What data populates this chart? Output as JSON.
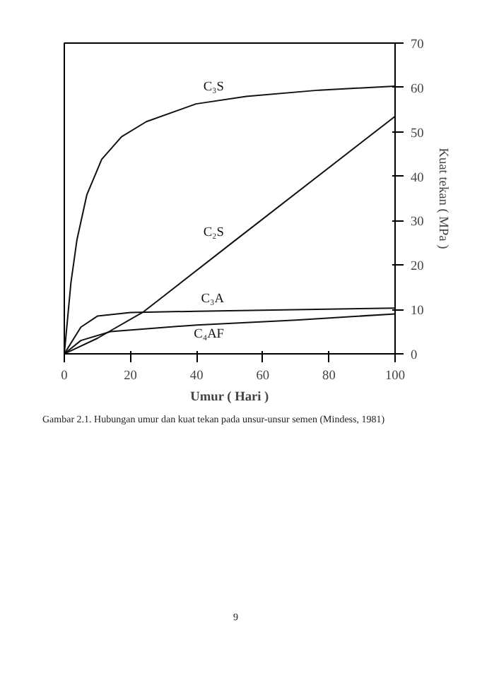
{
  "chart_data": {
    "type": "line",
    "xlabel": "Umur ( Hari )",
    "ylabel": "Kuat tekan ( MPa )",
    "xlim": [
      0,
      100
    ],
    "ylim": [
      0,
      70
    ],
    "xticks": [
      0,
      20,
      40,
      60,
      80,
      100
    ],
    "yticks": [
      0,
      10,
      20,
      30,
      40,
      50,
      60,
      70
    ],
    "grid": false,
    "marker": "none",
    "line_style": "solid",
    "series": [
      {
        "name": "C₃S",
        "color": "#111111",
        "x": [
          0,
          1,
          2,
          3.8,
          6.8,
          11.3,
          17.3,
          24.8,
          39.8,
          55,
          77,
          100
        ],
        "values": [
          0,
          8,
          16,
          25.6,
          35.8,
          43.8,
          48.9,
          52.3,
          56.3,
          58,
          59.4,
          60.3
        ]
      },
      {
        "name": "C₂S",
        "color": "#111111",
        "x": [
          0,
          10,
          24,
          50,
          100
        ],
        "values": [
          0,
          3.5,
          9.5,
          24.6,
          53.5
        ]
      },
      {
        "name": "C₃A",
        "color": "#111111",
        "x": [
          0,
          5,
          10,
          20,
          40,
          100
        ],
        "values": [
          0,
          6,
          8.5,
          9.3,
          9.6,
          10.3
        ]
      },
      {
        "name": "C₄AF",
        "color": "#111111",
        "x": [
          0,
          5,
          14,
          40,
          70,
          100
        ],
        "values": [
          0,
          3,
          5,
          6.5,
          7.6,
          9
        ]
      }
    ],
    "annotations": [
      "Gambar 2.1. Hubungan umur dan kuat tekan pada unsur-unsur semen (Mindess, 1981)",
      "9"
    ]
  }
}
